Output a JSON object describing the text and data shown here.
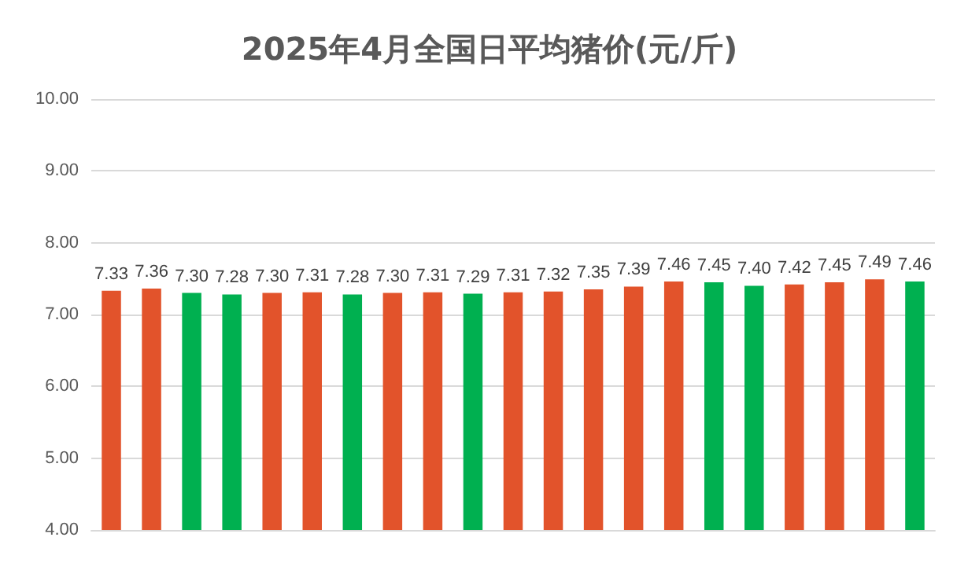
{
  "chart_data": {
    "type": "bar",
    "title": "2025年4月全国日平均猪价(元/斤)",
    "categories": [
      null,
      null,
      null,
      null,
      null,
      null,
      null,
      null,
      null,
      null,
      null,
      null,
      null,
      null,
      null,
      null,
      null,
      null,
      null,
      null,
      null
    ],
    "values": [
      7.33,
      7.36,
      7.3,
      7.28,
      7.3,
      7.31,
      7.28,
      7.3,
      7.31,
      7.29,
      7.31,
      7.32,
      7.35,
      7.39,
      7.46,
      7.45,
      7.4,
      7.42,
      7.45,
      7.49,
      7.46
    ],
    "colors": [
      "#e2532b",
      "#e2532b",
      "#00b050",
      "#00b050",
      "#e2532b",
      "#e2532b",
      "#00b050",
      "#e2532b",
      "#e2532b",
      "#00b050",
      "#e2532b",
      "#e2532b",
      "#e2532b",
      "#e2532b",
      "#e2532b",
      "#00b050",
      "#00b050",
      "#e2532b",
      "#e2532b",
      "#e2532b",
      "#00b050"
    ],
    "value_labels": [
      "7.33",
      "7.36",
      "7.30",
      "7.28",
      "7.30",
      "7.31",
      "7.28",
      "7.30",
      "7.31",
      "7.29",
      "7.31",
      "7.32",
      "7.35",
      "7.39",
      "7.46",
      "7.45",
      "7.40",
      "7.42",
      "7.45",
      "7.49",
      "7.46"
    ],
    "ylim": [
      4,
      10
    ],
    "yticks": [
      {
        "value": 4,
        "label": "4.00"
      },
      {
        "value": 5,
        "label": "5.00"
      },
      {
        "value": 6,
        "label": "6.00"
      },
      {
        "value": 7,
        "label": "7.00"
      },
      {
        "value": 8,
        "label": "8.00"
      },
      {
        "value": 9,
        "label": "9.00"
      },
      {
        "value": 10,
        "label": "10.00"
      }
    ],
    "grid": "y"
  }
}
